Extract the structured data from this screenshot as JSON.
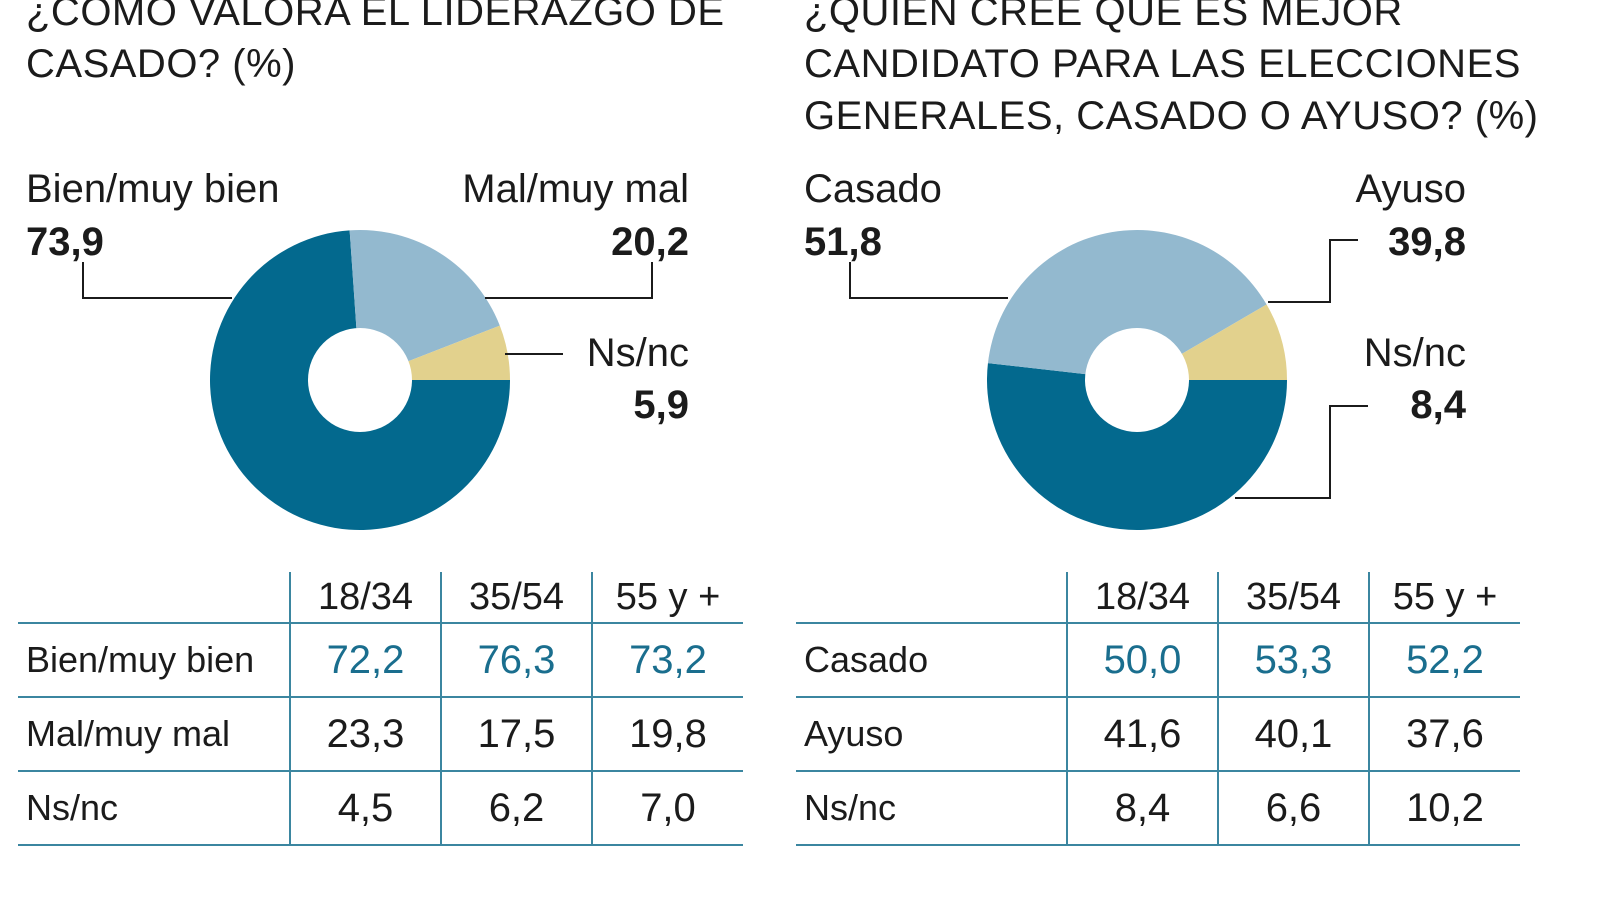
{
  "colors": {
    "dark": "#03698e",
    "light": "#93b9cf",
    "ns": "#e2d18d",
    "line": "#3b86a0",
    "highlight": "#1a6e8e"
  },
  "chart_data": [
    {
      "type": "pie",
      "title": "¿CÓMO VALORA EL LIDERAZGO DE CASADO? (%)",
      "slices": [
        {
          "label": "Bien/muy bien",
          "value": 73.9,
          "display": "73,9",
          "color": "#03698e"
        },
        {
          "label": "Mal/muy mal",
          "value": 20.2,
          "display": "20,2",
          "color": "#93b9cf"
        },
        {
          "label": "Ns/nc",
          "value": 5.9,
          "display": "5,9",
          "color": "#e2d18d"
        }
      ],
      "table": {
        "columns": [
          "18/34",
          "35/54",
          "55 y +"
        ],
        "rows": [
          {
            "label": "Bien/muy bien",
            "values": [
              "72,2",
              "76,3",
              "73,2"
            ]
          },
          {
            "label": "Mal/muy mal",
            "values": [
              "23,3",
              "17,5",
              "19,8"
            ]
          },
          {
            "label": "Ns/nc",
            "values": [
              "4,5",
              "6,2",
              "7,0"
            ]
          }
        ]
      }
    },
    {
      "type": "pie",
      "title": "¿QUIÉN CREE QUE ES MEJOR CANDIDATO PARA LAS ELECCIONES GENERALES, CASADO O AYUSO? (%)",
      "slices": [
        {
          "label": "Casado",
          "value": 51.8,
          "display": "51,8",
          "color": "#03698e"
        },
        {
          "label": "Ayuso",
          "value": 39.8,
          "display": "39,8",
          "color": "#93b9cf"
        },
        {
          "label": "Ns/nc",
          "value": 8.4,
          "display": "8,4",
          "color": "#e2d18d"
        }
      ],
      "table": {
        "columns": [
          "18/34",
          "35/54",
          "55 y +"
        ],
        "rows": [
          {
            "label": "Casado",
            "values": [
              "50,0",
              "53,3",
              "52,2"
            ]
          },
          {
            "label": "Ayuso",
            "values": [
              "41,6",
              "40,1",
              "37,6"
            ]
          },
          {
            "label": "Ns/nc",
            "values": [
              "8,4",
              "6,6",
              "10,2"
            ]
          }
        ]
      }
    }
  ]
}
